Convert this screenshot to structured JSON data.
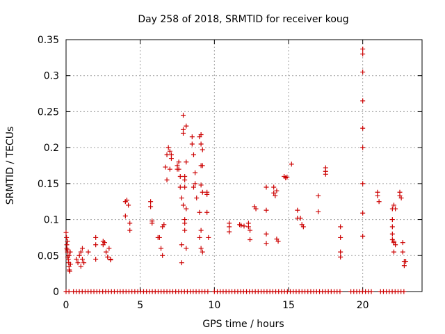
{
  "chart_data": {
    "type": "scatter",
    "title": "Day 258 of 2018, SRMTID for receiver koug",
    "xlabel": "GPS time / hours",
    "ylabel": "SRMTID / TECUs",
    "xlim": [
      0,
      24
    ],
    "ylim": [
      0,
      0.35
    ],
    "xticks": [
      0,
      5,
      10,
      15,
      20
    ],
    "xtick_labels": [
      "0",
      "5",
      "10",
      "15",
      "20"
    ],
    "yticks": [
      0,
      0.05,
      0.1,
      0.15,
      0.2,
      0.25,
      0.3,
      0.35
    ],
    "ytick_labels": [
      "0",
      "0.05",
      "0.1",
      "0.15",
      "0.2",
      "0.25",
      "0.3",
      "0.35"
    ],
    "grid": true,
    "marker": "+",
    "series": [
      {
        "name": "SRMTID",
        "color": "#cc0000",
        "points": [
          [
            0.0,
            0.082
          ],
          [
            0.03,
            0.075
          ],
          [
            0.05,
            0.065
          ],
          [
            0.05,
            0.06
          ],
          [
            0.08,
            0.058
          ],
          [
            0.1,
            0.055
          ],
          [
            0.12,
            0.048
          ],
          [
            0.15,
            0.045
          ],
          [
            0.18,
            0.04
          ],
          [
            0.2,
            0.035
          ],
          [
            0.22,
            0.03
          ],
          [
            0.25,
            0.028
          ],
          [
            0.28,
            0.055
          ],
          [
            0.3,
            0.038
          ],
          [
            0.1,
            0.07
          ],
          [
            0.2,
            0.05
          ],
          [
            0.7,
            0.045
          ],
          [
            0.8,
            0.04
          ],
          [
            0.9,
            0.05
          ],
          [
            1.0,
            0.055
          ],
          [
            1.0,
            0.035
          ],
          [
            1.1,
            0.06
          ],
          [
            1.1,
            0.045
          ],
          [
            1.2,
            0.04
          ],
          [
            1.5,
            0.055
          ],
          [
            2.0,
            0.075
          ],
          [
            2.0,
            0.065
          ],
          [
            2.0,
            0.045
          ],
          [
            2.5,
            0.07
          ],
          [
            2.5,
            0.065
          ],
          [
            2.6,
            0.068
          ],
          [
            2.7,
            0.055
          ],
          [
            2.8,
            0.048
          ],
          [
            2.9,
            0.06
          ],
          [
            3.0,
            0.045
          ],
          [
            3.0,
            0.044
          ],
          [
            4.0,
            0.125
          ],
          [
            4.0,
            0.105
          ],
          [
            4.1,
            0.127
          ],
          [
            4.2,
            0.12
          ],
          [
            4.3,
            0.095
          ],
          [
            4.3,
            0.085
          ],
          [
            5.7,
            0.125
          ],
          [
            5.7,
            0.118
          ],
          [
            5.8,
            0.095
          ],
          [
            5.8,
            0.098
          ],
          [
            6.2,
            0.075
          ],
          [
            6.3,
            0.075
          ],
          [
            6.4,
            0.06
          ],
          [
            6.5,
            0.05
          ],
          [
            6.5,
            0.09
          ],
          [
            6.6,
            0.093
          ],
          [
            6.7,
            0.173
          ],
          [
            6.8,
            0.155
          ],
          [
            6.8,
            0.19
          ],
          [
            6.9,
            0.2
          ],
          [
            7.0,
            0.17
          ],
          [
            7.0,
            0.195
          ],
          [
            7.1,
            0.185
          ],
          [
            7.1,
            0.19
          ],
          [
            7.5,
            0.17
          ],
          [
            7.5,
            0.175
          ],
          [
            7.6,
            0.18
          ],
          [
            7.6,
            0.17
          ],
          [
            7.7,
            0.16
          ],
          [
            7.7,
            0.145
          ],
          [
            7.8,
            0.065
          ],
          [
            7.8,
            0.04
          ],
          [
            7.8,
            0.13
          ],
          [
            7.9,
            0.245
          ],
          [
            7.9,
            0.225
          ],
          [
            7.9,
            0.22
          ],
          [
            7.9,
            0.12
          ],
          [
            8.0,
            0.16
          ],
          [
            8.0,
            0.155
          ],
          [
            8.0,
            0.145
          ],
          [
            8.0,
            0.1
          ],
          [
            8.0,
            0.095
          ],
          [
            8.0,
            0.085
          ],
          [
            8.1,
            0.23
          ],
          [
            8.1,
            0.18
          ],
          [
            8.1,
            0.115
          ],
          [
            8.1,
            0.06
          ],
          [
            8.5,
            0.215
          ],
          [
            8.5,
            0.205
          ],
          [
            8.6,
            0.19
          ],
          [
            8.6,
            0.145
          ],
          [
            8.7,
            0.165
          ],
          [
            8.7,
            0.15
          ],
          [
            8.8,
            0.13
          ],
          [
            9.0,
            0.215
          ],
          [
            9.1,
            0.218
          ],
          [
            9.1,
            0.205
          ],
          [
            9.1,
            0.175
          ],
          [
            9.2,
            0.175
          ],
          [
            9.2,
            0.197
          ],
          [
            9.1,
            0.148
          ],
          [
            9.2,
            0.138
          ],
          [
            9.0,
            0.11
          ],
          [
            9.1,
            0.085
          ],
          [
            9.0,
            0.075
          ],
          [
            9.1,
            0.06
          ],
          [
            9.2,
            0.055
          ],
          [
            9.5,
            0.138
          ],
          [
            9.5,
            0.135
          ],
          [
            9.5,
            0.11
          ],
          [
            9.6,
            0.075
          ],
          [
            11.0,
            0.095
          ],
          [
            11.0,
            0.09
          ],
          [
            11.0,
            0.083
          ],
          [
            11.7,
            0.093
          ],
          [
            11.8,
            0.092
          ],
          [
            12.0,
            0.091
          ],
          [
            12.3,
            0.095
          ],
          [
            12.3,
            0.09
          ],
          [
            12.4,
            0.085
          ],
          [
            12.4,
            0.072
          ],
          [
            12.7,
            0.118
          ],
          [
            12.8,
            0.115
          ],
          [
            13.5,
            0.145
          ],
          [
            13.5,
            0.113
          ],
          [
            13.5,
            0.08
          ],
          [
            13.5,
            0.067
          ],
          [
            14.0,
            0.145
          ],
          [
            14.0,
            0.137
          ],
          [
            14.1,
            0.133
          ],
          [
            14.2,
            0.14
          ],
          [
            14.2,
            0.073
          ],
          [
            14.3,
            0.07
          ],
          [
            14.7,
            0.16
          ],
          [
            14.8,
            0.158
          ],
          [
            14.9,
            0.159
          ],
          [
            15.2,
            0.177
          ],
          [
            15.6,
            0.113
          ],
          [
            15.6,
            0.102
          ],
          [
            15.8,
            0.102
          ],
          [
            15.9,
            0.093
          ],
          [
            16.0,
            0.09
          ],
          [
            17.0,
            0.133
          ],
          [
            17.0,
            0.111
          ],
          [
            17.5,
            0.172
          ],
          [
            17.5,
            0.167
          ],
          [
            17.5,
            0.163
          ],
          [
            18.5,
            0.09
          ],
          [
            18.5,
            0.075
          ],
          [
            18.5,
            0.055
          ],
          [
            18.5,
            0.048
          ],
          [
            20.0,
            0.337
          ],
          [
            20.0,
            0.33
          ],
          [
            20.0,
            0.305
          ],
          [
            20.0,
            0.265
          ],
          [
            20.0,
            0.227
          ],
          [
            20.0,
            0.2
          ],
          [
            20.0,
            0.15
          ],
          [
            20.0,
            0.109
          ],
          [
            20.0,
            0.077
          ],
          [
            21.0,
            0.138
          ],
          [
            21.0,
            0.133
          ],
          [
            21.1,
            0.125
          ],
          [
            22.0,
            0.115
          ],
          [
            22.0,
            0.1
          ],
          [
            22.0,
            0.09
          ],
          [
            22.0,
            0.08
          ],
          [
            22.0,
            0.072
          ],
          [
            22.1,
            0.07
          ],
          [
            22.1,
            0.055
          ],
          [
            22.1,
            0.068
          ],
          [
            22.1,
            0.12
          ],
          [
            22.2,
            0.115
          ],
          [
            22.2,
            0.065
          ],
          [
            22.5,
            0.138
          ],
          [
            22.5,
            0.133
          ],
          [
            22.6,
            0.13
          ],
          [
            22.7,
            0.068
          ],
          [
            22.7,
            0.055
          ],
          [
            22.8,
            0.042
          ],
          [
            22.8,
            0.036
          ],
          [
            22.9,
            0.042
          ]
        ]
      }
    ],
    "zero_segments": [
      [
        0.0,
        0.3
      ],
      [
        0.5,
        9.6
      ],
      [
        10.0,
        18.6
      ],
      [
        19.2,
        20.7
      ],
      [
        21.2,
        22.9
      ]
    ]
  }
}
